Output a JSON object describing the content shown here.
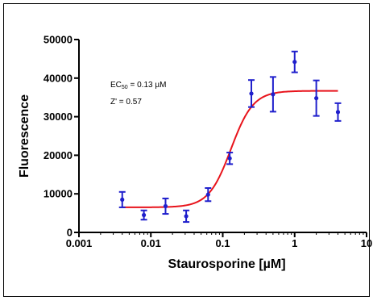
{
  "chart_data": {
    "type": "scatter",
    "xlabel": "Staurosporine [µM]",
    "ylabel": "Fluorescence",
    "xscale": "log",
    "xlim": [
      0.001,
      10
    ],
    "ylim": [
      0,
      50000
    ],
    "x_ticks": [
      0.001,
      0.01,
      0.1,
      1,
      10
    ],
    "x_tick_labels": [
      "0.001",
      "0.01",
      "0.1",
      "1",
      "10"
    ],
    "y_ticks": [
      0,
      10000,
      20000,
      30000,
      40000,
      50000
    ],
    "y_tick_labels": [
      "0",
      "10000",
      "20000",
      "30000",
      "40000",
      "50000"
    ],
    "annotations": {
      "ec50_prefix": "EC",
      "ec50_sub": "50",
      "ec50_value": " = 0.13 µM",
      "zprime": "Z' = 0.57"
    },
    "points": [
      {
        "x": 0.004,
        "y": 8500,
        "err": 2000
      },
      {
        "x": 0.008,
        "y": 4500,
        "err": 1200
      },
      {
        "x": 0.016,
        "y": 6800,
        "err": 2000
      },
      {
        "x": 0.031,
        "y": 4200,
        "err": 1500
      },
      {
        "x": 0.0625,
        "y": 9800,
        "err": 1700
      },
      {
        "x": 0.125,
        "y": 19200,
        "err": 1500
      },
      {
        "x": 0.25,
        "y": 36000,
        "err": 3500
      },
      {
        "x": 0.5,
        "y": 35800,
        "err": 4500
      },
      {
        "x": 1,
        "y": 44200,
        "err": 2700
      },
      {
        "x": 2,
        "y": 34800,
        "err": 4600
      },
      {
        "x": 4,
        "y": 31200,
        "err": 2300
      }
    ],
    "fit": {
      "bottom": 6500,
      "top": 36700,
      "ec50": 0.13,
      "hill": 2.8,
      "x_range": [
        0.004,
        4
      ]
    },
    "colors": {
      "points": "#1f1fcc",
      "fit": "#e8141c",
      "axis": "#000000"
    }
  }
}
